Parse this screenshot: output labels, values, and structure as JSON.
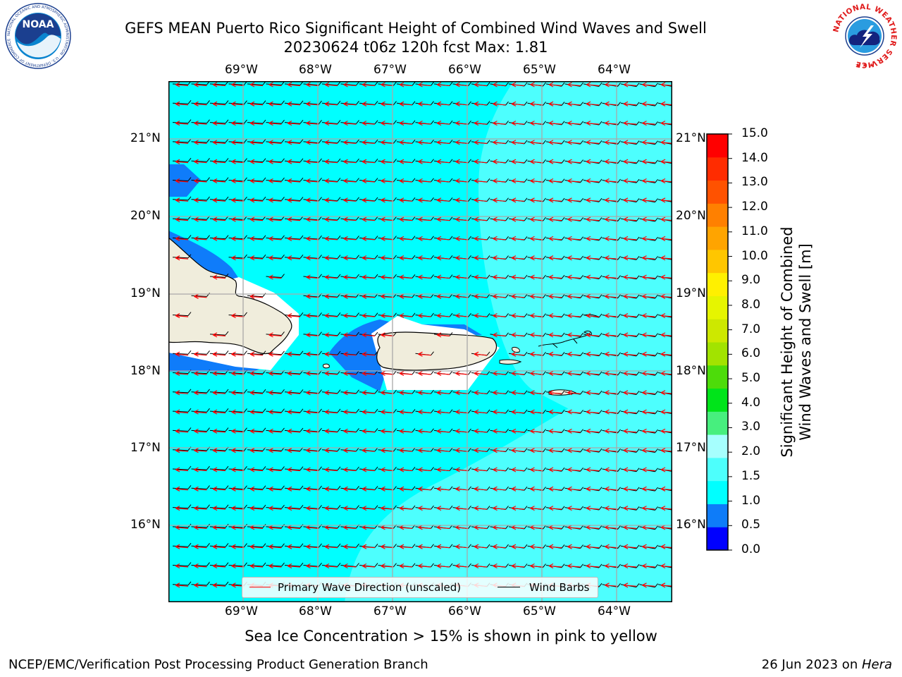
{
  "title_line1": "GEFS MEAN Puerto Rico Significant Height of Combined Wind Waves and Swell",
  "title_line2": "20230624 t06z 120h fcst   Max: 1.81",
  "logos": {
    "left_text": "NOAA",
    "left_ring_text": "NATIONAL OCEANIC AND ATMOSPHERIC ADMINISTRATION · U.S. DEPARTMENT OF COMMERCE",
    "right_ring_text": "NATIONAL WEATHER SERVICE"
  },
  "map": {
    "lon_labels": [
      "69°W",
      "68°W",
      "67°W",
      "66°W",
      "65°W",
      "64°W"
    ],
    "lat_labels": [
      "21°N",
      "20°N",
      "19°N",
      "18°N",
      "17°N",
      "16°N"
    ],
    "colors": {
      "land": "#f0eddc",
      "band_0_5_1_0": "#0f7cfa",
      "band_1_0_1_5": "#00ffff",
      "band_1_5_2_0": "#4dfffe",
      "wave_arrow": "#ff0000",
      "wind_barb": "#000000"
    }
  },
  "legend": {
    "primary_wave": "Primary Wave Direction (unscaled)",
    "wind_barbs": "Wind Barbs"
  },
  "colorbar": {
    "title_line1": "Significant Height of Combined",
    "title_line2": "Wind Waves and Swell [m]",
    "ticks": [
      "15.0",
      "14.0",
      "13.0",
      "12.0",
      "11.0",
      "10.0",
      "9.0",
      "8.0",
      "7.0",
      "6.0",
      "5.0",
      "4.0",
      "3.0",
      "2.0",
      "1.5",
      "1.0",
      "0.5",
      "0.0"
    ],
    "colors": [
      "#0000ff",
      "#0e7cf9",
      "#00ffff",
      "#4dfffc",
      "#a6fffe",
      "#47ef7e",
      "#00e41a",
      "#4ddc0a",
      "#a2e300",
      "#cde800",
      "#e6f500",
      "#fff000",
      "#ffc600",
      "#ffa400",
      "#ff8000",
      "#ff5200",
      "#ff2c00",
      "#ff0000"
    ]
  },
  "caption": "Sea Ice Concentration > 15% is shown in pink to yellow",
  "footer_left": "NCEP/EMC/Verification Post Processing Product Generation Branch",
  "footer_right_prefix": "26 Jun 2023 on ",
  "footer_right_host": "Hera"
}
